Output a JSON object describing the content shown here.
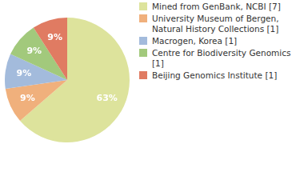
{
  "chart_data": {
    "type": "pie",
    "categories": [
      "Mined from GenBank, NCBI [7]",
      "University Museum of Bergen, Natural History Collections [1]",
      "Macrogen, Korea [1]",
      "Centre for Biodiversity Genomics [1]",
      "Beijing Genomics Institute [1]"
    ],
    "values": [
      63,
      9,
      9,
      9,
      9
    ],
    "value_labels": [
      "63%",
      "9%",
      "9%",
      "9%",
      "9%"
    ],
    "colors": [
      "#dde39c",
      "#f0b07c",
      "#a3bbdc",
      "#a2c97c",
      "#e07b62"
    ],
    "data_labels": true,
    "legend": "top-right"
  }
}
